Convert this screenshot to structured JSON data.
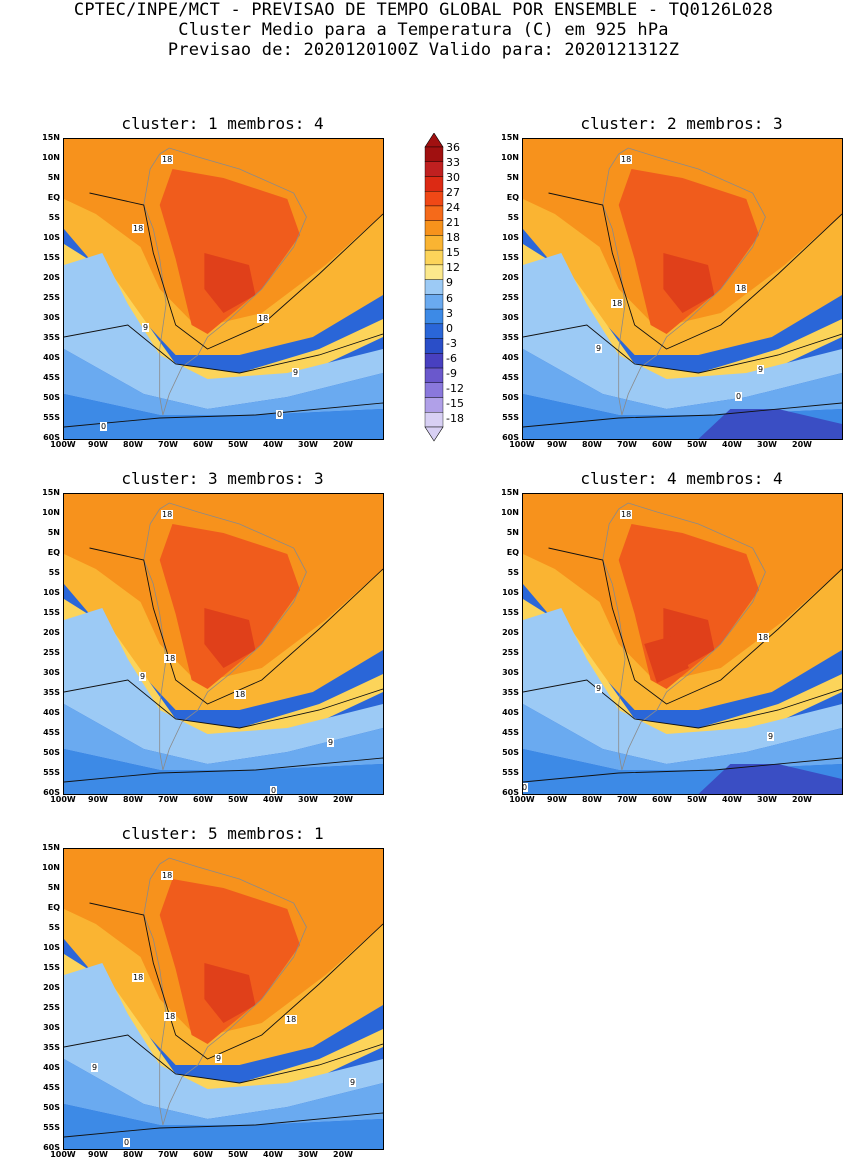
{
  "header": {
    "line1": "CPTEC/INPE/MCT - PREVISAO DE TEMPO GLOBAL POR ENSEMBLE - TQ0126L028",
    "line2": "Cluster Medio para a Temperatura (C) em 925 hPa",
    "line3": "Previsao de: 2020120100Z   Valido para: 2020121312Z"
  },
  "y_ticks": [
    "15N",
    "10N",
    "5N",
    "EQ",
    "5S",
    "10S",
    "15S",
    "20S",
    "25S",
    "30S",
    "35S",
    "40S",
    "45S",
    "50S",
    "55S",
    "60S"
  ],
  "x_ticks": [
    "100W",
    "90W",
    "80W",
    "70W",
    "60W",
    "50W",
    "40W",
    "30W",
    "20W"
  ],
  "panels": [
    {
      "title": "cluster: 1   membros: 4",
      "contour_labels": [
        "18",
        "18",
        "18",
        "9",
        "9",
        "0",
        "0"
      ]
    },
    {
      "title": "cluster: 2   membros: 3",
      "contour_labels": [
        "18",
        "18",
        "18",
        "9",
        "9",
        "0"
      ]
    },
    {
      "title": "cluster: 3   membros: 3",
      "contour_labels": [
        "18",
        "18",
        "18",
        "9",
        "9",
        "0"
      ]
    },
    {
      "title": "cluster: 4   membros: 4",
      "contour_labels": [
        "18",
        "18",
        "9",
        "9",
        "0"
      ]
    },
    {
      "title": "cluster: 5   membros: 1",
      "contour_labels": [
        "18",
        "18",
        "18",
        "18",
        "9",
        "9",
        "9",
        "0"
      ]
    }
  ],
  "colorbar": {
    "labels": [
      "36",
      "33",
      "30",
      "27",
      "24",
      "21",
      "18",
      "15",
      "12",
      "9",
      "6",
      "3",
      "0",
      "-3",
      "-6",
      "-9",
      "-12",
      "-15",
      "-18"
    ],
    "colors": [
      "#a01010",
      "#c02020",
      "#dc2a14",
      "#f04816",
      "#f56a1a",
      "#f7921c",
      "#fab432",
      "#fcd45a",
      "#fce98c",
      "#9ccaf5",
      "#6aaaf0",
      "#3d8ae6",
      "#2a66d8",
      "#2a4ec8",
      "#4840c0",
      "#6a58cc",
      "#8a78dc",
      "#b0a0e8",
      "#d8d0f4"
    ]
  }
}
